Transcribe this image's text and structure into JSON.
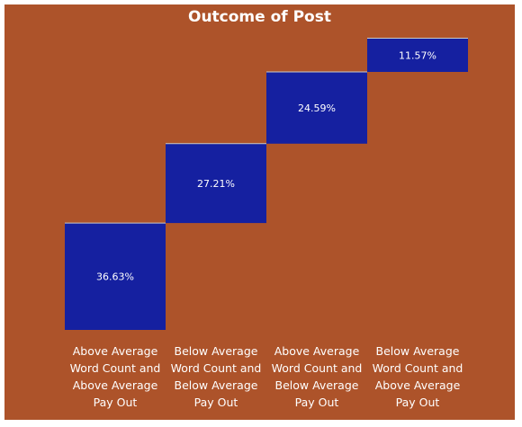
{
  "chart_data": {
    "type": "waterfall",
    "title": "Outcome of Post",
    "categories": [
      "Above Average Word Count and Above Average Pay Out",
      "Below Average Word Count and Below Average Pay Out",
      "Above Average Word Count and Below Average Pay Out",
      "Below Average Word Count and Above Average Pay Out"
    ],
    "category_lines": [
      [
        "Above Average",
        "Word Count and",
        "Above Average",
        "Pay Out"
      ],
      [
        "Below Average",
        "Word Count and",
        "Below Average",
        "Pay Out"
      ],
      [
        "Above Average",
        "Word Count and",
        "Below Average",
        "Pay Out"
      ],
      [
        "Below Average",
        "Word Count and",
        "Above Average",
        "Pay Out"
      ]
    ],
    "values": [
      36.63,
      27.21,
      24.59,
      11.57
    ],
    "labels": [
      "36.63%",
      "27.21%",
      "24.59%",
      "11.57%"
    ],
    "ylim": [
      0,
      100
    ],
    "colors": {
      "background": "#ad532a",
      "bar": "#1520a0",
      "text": "#ffffff"
    }
  }
}
